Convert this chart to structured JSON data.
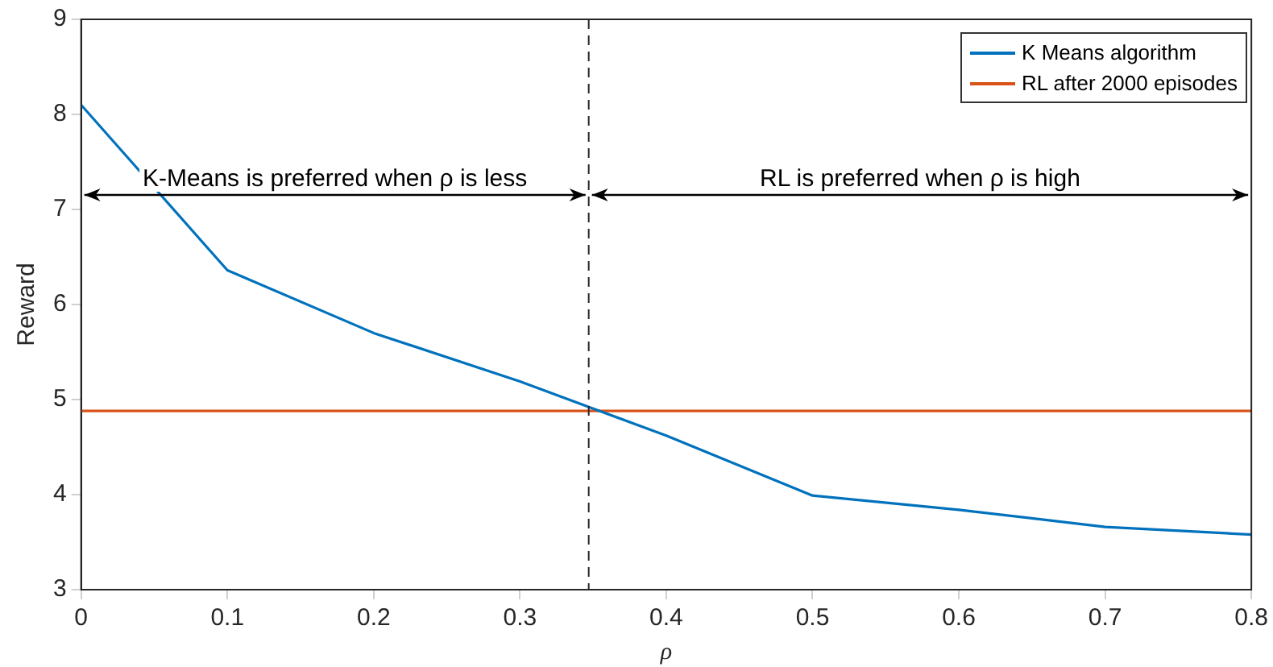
{
  "chart_data": {
    "type": "line",
    "xlabel": "ρ",
    "ylabel": "Reward",
    "xlim": [
      0,
      0.8
    ],
    "xticks": [
      0,
      0.1,
      0.2,
      0.3,
      0.4,
      0.5,
      0.6,
      0.7,
      0.8
    ],
    "ylim": [
      3,
      9
    ],
    "yticks": [
      3,
      4,
      5,
      6,
      7,
      8,
      9
    ],
    "series": [
      {
        "name": "K Means algorithm",
        "color": "#0072bd",
        "x": [
          0,
          0.1,
          0.2,
          0.3,
          0.4,
          0.5,
          0.6,
          0.7,
          0.8
        ],
        "values": [
          8.1,
          6.36,
          5.7,
          5.19,
          4.62,
          3.99,
          3.84,
          3.66,
          3.58
        ]
      },
      {
        "name": "RL after 2000 episodes",
        "color": "#d95319",
        "x": [
          0,
          0.8
        ],
        "values": [
          4.88,
          4.88
        ]
      }
    ],
    "ref_lines": [
      {
        "axis": "x",
        "value": 0.347,
        "color": "#262626",
        "line_style": "dashed"
      }
    ],
    "annotations": [
      "K-Means is preferred when ρ is less",
      "RL is preferred when ρ is high"
    ],
    "legend": "top right",
    "grid": false,
    "marker": "none",
    "line_style": "solid"
  }
}
